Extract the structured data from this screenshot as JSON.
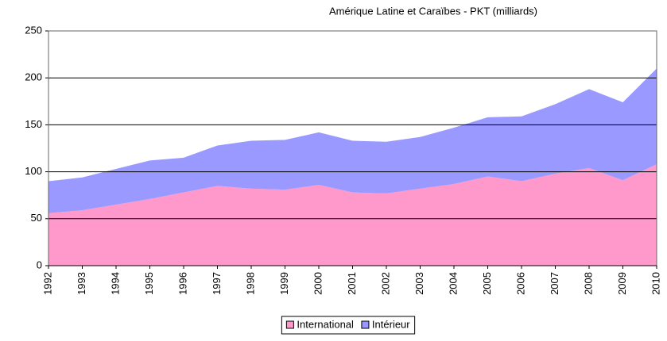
{
  "chart_data": {
    "type": "stacked_area",
    "title": "Amérique Latine et Caraïbes - PKT (milliards)",
    "categories": [
      "1992",
      "1993",
      "1994",
      "1995",
      "1996",
      "1997",
      "1998",
      "1999",
      "2000",
      "2001",
      "2002",
      "2003",
      "2004",
      "2005",
      "2006",
      "2007",
      "2008",
      "2009",
      "2010"
    ],
    "series": [
      {
        "name": "International",
        "color": "#ff99cc",
        "values": [
          56,
          59,
          65,
          71,
          78,
          85,
          82,
          81,
          86,
          78,
          77,
          82,
          87,
          95,
          90,
          98,
          104,
          91,
          108
        ]
      },
      {
        "name": "Intérieur",
        "color": "#9999ff",
        "values": [
          34,
          35,
          38,
          41,
          37,
          43,
          51,
          53,
          56,
          55,
          55,
          55,
          60,
          63,
          69,
          74,
          84,
          83,
          102
        ]
      }
    ],
    "ylim": [
      0,
      250
    ],
    "yticks": [
      0,
      50,
      100,
      150,
      200,
      250
    ],
    "grid": true,
    "legend": "bottom"
  }
}
